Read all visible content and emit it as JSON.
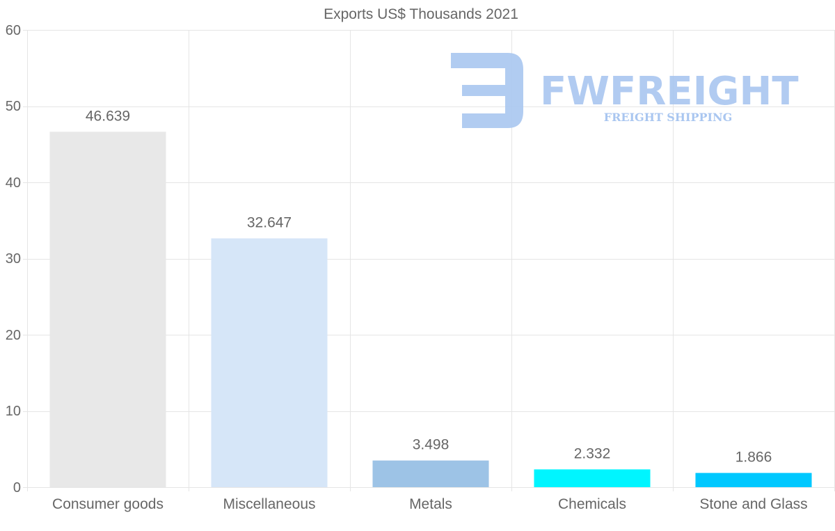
{
  "chart_data": {
    "type": "bar",
    "title": "Exports US$ Thousands 2021",
    "categories": [
      "Consumer goods",
      "Miscellaneous",
      "Metals",
      "Chemicals",
      "Stone and Glass"
    ],
    "values": [
      46.639,
      32.647,
      3.498,
      2.332,
      1.866
    ],
    "value_labels": [
      "46.639",
      "32.647",
      "3.498",
      "2.332",
      "1.866"
    ],
    "colors": [
      "#e8e8e8",
      "#d6e6f8",
      "#9dc3e6",
      "#00f5ff",
      "#00c8ff"
    ],
    "ylim": [
      0,
      60
    ],
    "yticks": [
      "0",
      "10",
      "20",
      "30",
      "40",
      "50",
      "60"
    ],
    "xlabel": "",
    "ylabel": "",
    "grid": true,
    "legend": "none"
  },
  "watermark": {
    "brand": "FWFREIGHT",
    "tagline": "FREIGHT SHIPPING",
    "color": "#a9c6f0"
  }
}
